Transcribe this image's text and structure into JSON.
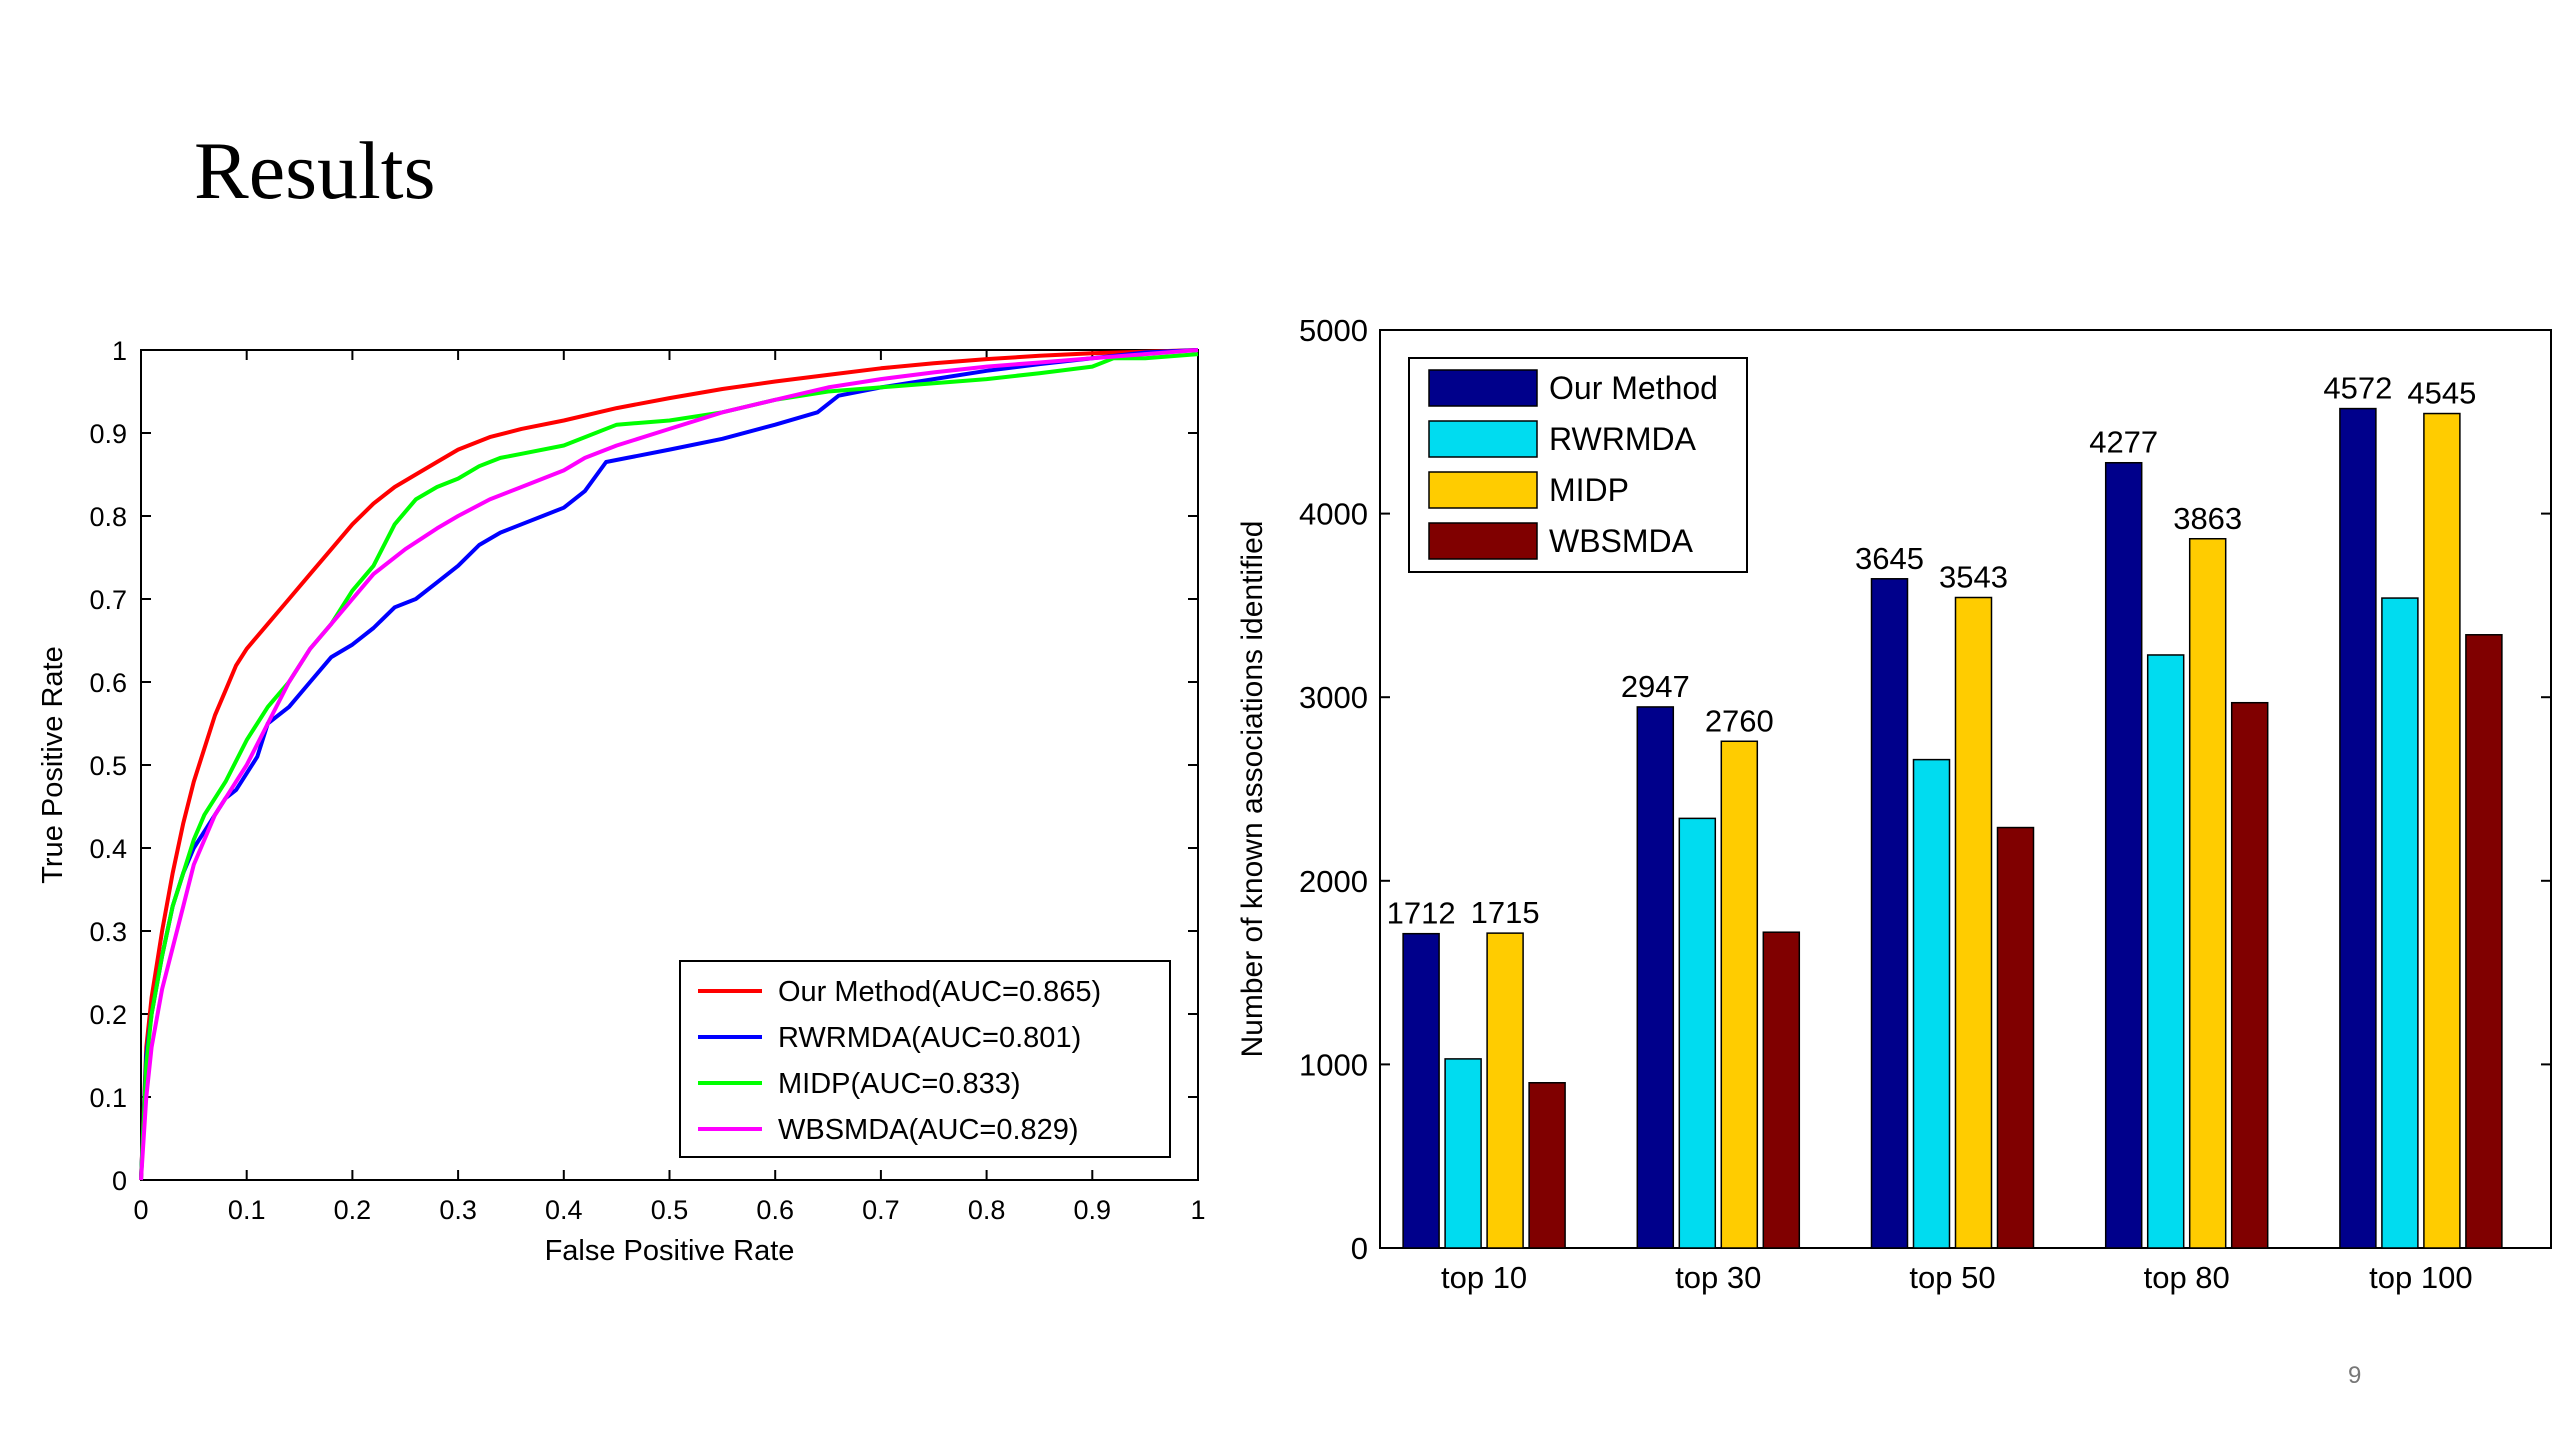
{
  "slide": {
    "title": "Results",
    "page_number": "9"
  },
  "chart_data": [
    {
      "type": "line",
      "xlabel": "False Positive Rate",
      "ylabel": "True Positive Rate",
      "xlim": [
        0,
        1
      ],
      "ylim": [
        0,
        1
      ],
      "xticks": [
        "0",
        "0.1",
        "0.2",
        "0.3",
        "0.4",
        "0.5",
        "0.6",
        "0.7",
        "0.8",
        "0.9",
        "1"
      ],
      "yticks": [
        "0",
        "0.1",
        "0.2",
        "0.3",
        "0.4",
        "0.5",
        "0.6",
        "0.7",
        "0.8",
        "0.9",
        "1"
      ],
      "grid": false,
      "legend_position": "bottom-right",
      "series": [
        {
          "name": "Our Method(AUC=0.865)",
          "color": "#ff0000",
          "points": [
            [
              0,
              0
            ],
            [
              0.005,
              0.16
            ],
            [
              0.01,
              0.22
            ],
            [
              0.02,
              0.3
            ],
            [
              0.03,
              0.37
            ],
            [
              0.04,
              0.43
            ],
            [
              0.05,
              0.48
            ],
            [
              0.06,
              0.52
            ],
            [
              0.07,
              0.56
            ],
            [
              0.08,
              0.59
            ],
            [
              0.09,
              0.62
            ],
            [
              0.1,
              0.64
            ],
            [
              0.12,
              0.67
            ],
            [
              0.14,
              0.7
            ],
            [
              0.16,
              0.73
            ],
            [
              0.18,
              0.76
            ],
            [
              0.2,
              0.79
            ],
            [
              0.22,
              0.815
            ],
            [
              0.24,
              0.835
            ],
            [
              0.26,
              0.85
            ],
            [
              0.28,
              0.865
            ],
            [
              0.3,
              0.88
            ],
            [
              0.33,
              0.895
            ],
            [
              0.36,
              0.905
            ],
            [
              0.4,
              0.915
            ],
            [
              0.45,
              0.93
            ],
            [
              0.5,
              0.942
            ],
            [
              0.55,
              0.953
            ],
            [
              0.6,
              0.962
            ],
            [
              0.65,
              0.97
            ],
            [
              0.7,
              0.978
            ],
            [
              0.75,
              0.984
            ],
            [
              0.8,
              0.989
            ],
            [
              0.85,
              0.993
            ],
            [
              0.9,
              0.996
            ],
            [
              0.95,
              0.998
            ],
            [
              1,
              1
            ]
          ]
        },
        {
          "name": "RWRMDA(AUC=0.801)",
          "color": "#0000ff",
          "points": [
            [
              0,
              0
            ],
            [
              0.005,
              0.15
            ],
            [
              0.01,
              0.2
            ],
            [
              0.02,
              0.27
            ],
            [
              0.03,
              0.33
            ],
            [
              0.04,
              0.37
            ],
            [
              0.05,
              0.4
            ],
            [
              0.06,
              0.42
            ],
            [
              0.07,
              0.44
            ],
            [
              0.08,
              0.46
            ],
            [
              0.09,
              0.47
            ],
            [
              0.1,
              0.49
            ],
            [
              0.11,
              0.51
            ],
            [
              0.12,
              0.55
            ],
            [
              0.14,
              0.57
            ],
            [
              0.16,
              0.6
            ],
            [
              0.18,
              0.63
            ],
            [
              0.2,
              0.645
            ],
            [
              0.22,
              0.665
            ],
            [
              0.24,
              0.69
            ],
            [
              0.26,
              0.7
            ],
            [
              0.28,
              0.72
            ],
            [
              0.3,
              0.74
            ],
            [
              0.32,
              0.765
            ],
            [
              0.34,
              0.78
            ],
            [
              0.36,
              0.79
            ],
            [
              0.38,
              0.8
            ],
            [
              0.4,
              0.81
            ],
            [
              0.42,
              0.83
            ],
            [
              0.44,
              0.865
            ],
            [
              0.46,
              0.87
            ],
            [
              0.5,
              0.88
            ],
            [
              0.55,
              0.893
            ],
            [
              0.6,
              0.91
            ],
            [
              0.64,
              0.925
            ],
            [
              0.66,
              0.945
            ],
            [
              0.7,
              0.955
            ],
            [
              0.75,
              0.965
            ],
            [
              0.8,
              0.975
            ],
            [
              0.85,
              0.983
            ],
            [
              0.9,
              0.99
            ],
            [
              0.95,
              0.997
            ],
            [
              1,
              1
            ]
          ]
        },
        {
          "name": "MIDP(AUC=0.833)",
          "color": "#00ff00",
          "points": [
            [
              0,
              0
            ],
            [
              0.005,
              0.14
            ],
            [
              0.01,
              0.2
            ],
            [
              0.02,
              0.27
            ],
            [
              0.03,
              0.33
            ],
            [
              0.04,
              0.37
            ],
            [
              0.05,
              0.41
            ],
            [
              0.06,
              0.44
            ],
            [
              0.08,
              0.48
            ],
            [
              0.1,
              0.53
            ],
            [
              0.12,
              0.57
            ],
            [
              0.14,
              0.6
            ],
            [
              0.16,
              0.64
            ],
            [
              0.18,
              0.67
            ],
            [
              0.2,
              0.71
            ],
            [
              0.22,
              0.74
            ],
            [
              0.24,
              0.79
            ],
            [
              0.26,
              0.82
            ],
            [
              0.28,
              0.835
            ],
            [
              0.3,
              0.845
            ],
            [
              0.32,
              0.86
            ],
            [
              0.34,
              0.87
            ],
            [
              0.36,
              0.875
            ],
            [
              0.4,
              0.885
            ],
            [
              0.45,
              0.91
            ],
            [
              0.5,
              0.915
            ],
            [
              0.55,
              0.925
            ],
            [
              0.6,
              0.94
            ],
            [
              0.65,
              0.95
            ],
            [
              0.7,
              0.955
            ],
            [
              0.75,
              0.96
            ],
            [
              0.8,
              0.965
            ],
            [
              0.85,
              0.972
            ],
            [
              0.9,
              0.98
            ],
            [
              0.92,
              0.99
            ],
            [
              0.95,
              0.99
            ],
            [
              1,
              0.995
            ]
          ]
        },
        {
          "name": "WBSMDA(AUC=0.829)",
          "color": "#ff00ff",
          "points": [
            [
              0,
              0
            ],
            [
              0.005,
              0.1
            ],
            [
              0.01,
              0.16
            ],
            [
              0.02,
              0.23
            ],
            [
              0.03,
              0.28
            ],
            [
              0.04,
              0.33
            ],
            [
              0.05,
              0.38
            ],
            [
              0.06,
              0.41
            ],
            [
              0.07,
              0.44
            ],
            [
              0.08,
              0.46
            ],
            [
              0.09,
              0.48
            ],
            [
              0.1,
              0.5
            ],
            [
              0.12,
              0.55
            ],
            [
              0.14,
              0.6
            ],
            [
              0.16,
              0.64
            ],
            [
              0.18,
              0.67
            ],
            [
              0.2,
              0.7
            ],
            [
              0.22,
              0.73
            ],
            [
              0.25,
              0.76
            ],
            [
              0.28,
              0.785
            ],
            [
              0.3,
              0.8
            ],
            [
              0.33,
              0.82
            ],
            [
              0.36,
              0.835
            ],
            [
              0.4,
              0.855
            ],
            [
              0.42,
              0.87
            ],
            [
              0.45,
              0.885
            ],
            [
              0.5,
              0.905
            ],
            [
              0.55,
              0.925
            ],
            [
              0.6,
              0.94
            ],
            [
              0.65,
              0.955
            ],
            [
              0.7,
              0.965
            ],
            [
              0.75,
              0.973
            ],
            [
              0.8,
              0.98
            ],
            [
              0.85,
              0.985
            ],
            [
              0.9,
              0.99
            ],
            [
              0.95,
              0.995
            ],
            [
              1,
              1
            ]
          ]
        }
      ]
    },
    {
      "type": "bar",
      "ylabel": "Number of known associations identified",
      "ylim": [
        0,
        5000
      ],
      "yticks": [
        "0",
        "1000",
        "2000",
        "3000",
        "4000",
        "5000"
      ],
      "categories": [
        "top 10",
        "top 30",
        "top 50",
        "top 80",
        "top 100"
      ],
      "grid": false,
      "legend_position": "top-left",
      "series": [
        {
          "name": "Our Method",
          "color": "#00008b",
          "values": [
            1712,
            2947,
            3645,
            4277,
            4572
          ],
          "labels": [
            "1712",
            "2947",
            "3645",
            "4277",
            "4572"
          ]
        },
        {
          "name": "RWRMDA",
          "color": "#00dcf0",
          "values": [
            1030,
            2340,
            2660,
            3230,
            3540
          ],
          "labels": [
            "",
            "",
            "",
            "",
            ""
          ]
        },
        {
          "name": "MIDP",
          "color": "#ffcc00",
          "values": [
            1715,
            2760,
            3543,
            3863,
            4545
          ],
          "labels": [
            "1715",
            "2760",
            "3543",
            "3863",
            "4545"
          ]
        },
        {
          "name": "WBSMDA",
          "color": "#800000",
          "values": [
            900,
            1720,
            2290,
            2970,
            3340
          ],
          "labels": [
            "",
            "",
            "",
            "",
            ""
          ]
        }
      ]
    }
  ]
}
